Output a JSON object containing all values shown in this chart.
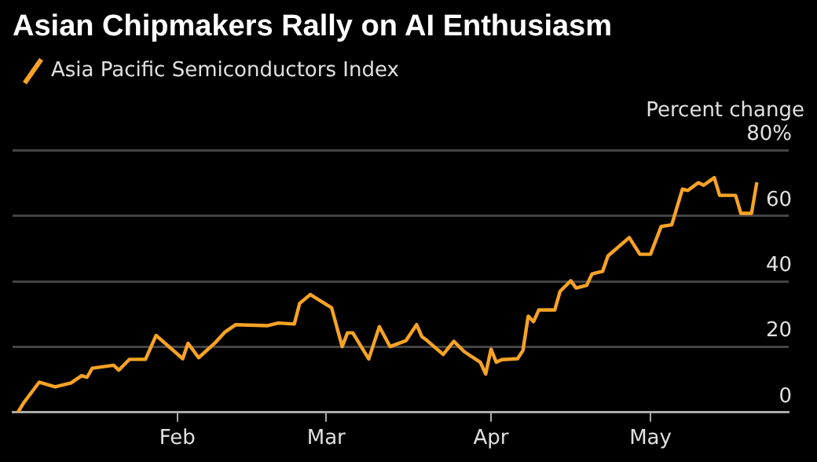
{
  "chart_data": {
    "type": "line",
    "title": "Asian Chipmakers Rally on AI Enthusiasm",
    "ylabel": "Percent change",
    "x": [
      "--01-02",
      "--01-03",
      "--01-06",
      "--01-09",
      "--01-12",
      "--01-14",
      "--01-15",
      "--01-16",
      "--01-20",
      "--01-21",
      "--01-23",
      "--01-26",
      "--01-28",
      "--02-02",
      "--02-03",
      "--02-05",
      "--02-08",
      "--02-10",
      "--02-12",
      "--02-18",
      "--02-20",
      "--02-23",
      "--02-24",
      "--02-26",
      "--03-02",
      "--03-04",
      "--03-05",
      "--03-06",
      "--03-09",
      "--03-11",
      "--03-13",
      "--03-16",
      "--03-18",
      "--03-19",
      "--03-20",
      "--03-23",
      "--03-25",
      "--03-27",
      "--03-30",
      "--03-31",
      "--04-01",
      "--04-02",
      "--04-03",
      "--04-06",
      "--04-07",
      "--04-08",
      "--04-09",
      "--04-10",
      "--04-13",
      "--04-14",
      "--04-16",
      "--04-17",
      "--04-19",
      "--04-20",
      "--04-22",
      "--04-23",
      "--04-27",
      "--04-29",
      "--05-01",
      "--05-03",
      "--05-05",
      "--05-07",
      "--05-08",
      "--05-10",
      "--05-11",
      "--05-13",
      "--05-14",
      "--05-17",
      "--05-18",
      "--05-20",
      "--05-21"
    ],
    "series": [
      {
        "name": "Asia Pacific Semiconductors Index",
        "color": "#f7a325",
        "values": [
          0,
          2.7,
          9.2,
          7.8,
          9,
          11.2,
          10.7,
          13.5,
          14.4,
          12.9,
          16.2,
          16.2,
          23.5,
          16.4,
          21.1,
          16.7,
          21.1,
          24.6,
          26.8,
          26.5,
          27.3,
          27,
          33.3,
          36,
          32,
          20.1,
          24.3,
          24.3,
          16.3,
          26.2,
          20.1,
          21.9,
          26.8,
          23.1,
          21.9,
          17.7,
          21.7,
          18.5,
          15.3,
          11.7,
          19.3,
          15.3,
          16.1,
          16.4,
          18.9,
          29.4,
          27.7,
          31.3,
          31.3,
          37,
          40.2,
          38,
          38.8,
          42.3,
          43.1,
          47.8,
          53.4,
          48.3,
          48.3,
          56.8,
          57.3,
          68.2,
          67.8,
          70.2,
          69.4,
          71.7,
          66.3,
          66.3,
          60.8,
          60.8,
          70.3
        ]
      }
    ],
    "xlim": [
      "--01-01",
      "--05-27"
    ],
    "xticks": [
      {
        "value": "--02-01",
        "label": "Feb"
      },
      {
        "value": "--03-01",
        "label": "Mar"
      },
      {
        "value": "--04-01",
        "label": "Apr"
      },
      {
        "value": "--05-01",
        "label": "May"
      }
    ],
    "ylim": [
      0,
      80
    ],
    "yticks": [
      0,
      20,
      40,
      60,
      {
        "value": 80,
        "label": "80%"
      }
    ],
    "grid": "y",
    "legend": "top left",
    "marker": "none",
    "line_style": "solid"
  }
}
